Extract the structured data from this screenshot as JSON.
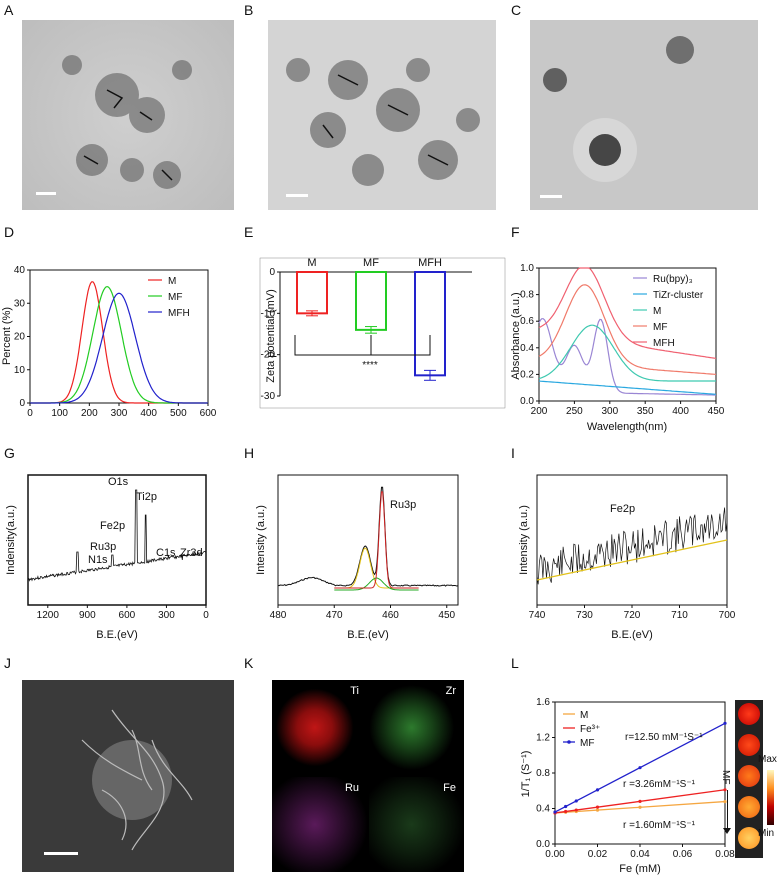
{
  "panels": {
    "A": {
      "letter": "A"
    },
    "B": {
      "letter": "B"
    },
    "C": {
      "letter": "C"
    },
    "D": {
      "letter": "D"
    },
    "E": {
      "letter": "E"
    },
    "F": {
      "letter": "F"
    },
    "G": {
      "letter": "G"
    },
    "H": {
      "letter": "H"
    },
    "I": {
      "letter": "I"
    },
    "J": {
      "letter": "J"
    },
    "K": {
      "letter": "K"
    },
    "L": {
      "letter": "L"
    }
  },
  "colors": {
    "red": "#ee2222",
    "green": "#22cc22",
    "blue": "#2222cc",
    "purple": "#9a86d4",
    "cyan": "#29a8e0",
    "salmon": "#f07a6a",
    "pink": "#f06070",
    "orange": "#f5a742"
  },
  "k_maps": {
    "ti": "Ti",
    "zr": "Zr",
    "ru": "Ru",
    "fe": "Fe"
  },
  "colorbar": {
    "max": "Max",
    "min": "Min",
    "arrow_label": "MF"
  },
  "chart_data": [
    {
      "id": "D",
      "type": "line",
      "xlabel": "",
      "ylabel": "Percent (%)",
      "xlim": [
        0,
        600
      ],
      "ylim": [
        0,
        40
      ],
      "xticks": [
        "0",
        "100",
        "200",
        "300",
        "400",
        "500",
        "600"
      ],
      "yticks": [
        "0",
        "10",
        "20",
        "30",
        "40"
      ],
      "series": [
        {
          "name": "M",
          "peak_x": 210,
          "peak_y": 36.5,
          "sigma": 35
        },
        {
          "name": "MF",
          "peak_x": 260,
          "peak_y": 35,
          "sigma": 48
        },
        {
          "name": "MFH",
          "peak_x": 300,
          "peak_y": 33,
          "sigma": 55
        }
      ]
    },
    {
      "id": "E",
      "type": "bar",
      "ylabel": "Zeta potential (mV)",
      "ylim": [
        -30,
        0
      ],
      "categories": [
        "M",
        "MF",
        "MFH"
      ],
      "values": [
        -10,
        -14,
        -25
      ],
      "errors": [
        0.6,
        0.8,
        1.2
      ],
      "yticks": [
        "0",
        "-10",
        "-20",
        "-30"
      ],
      "significance": "****"
    },
    {
      "id": "F",
      "type": "line",
      "xlabel": "Wavelength(nm)",
      "ylabel": "Absorbance (a.u.)",
      "xlim": [
        200,
        450
      ],
      "ylim": [
        0,
        1.0
      ],
      "xticks": [
        "200",
        "250",
        "300",
        "350",
        "400",
        "450"
      ],
      "yticks": [
        "0.0",
        "0.2",
        "0.4",
        "0.6",
        "0.8",
        "1.0"
      ],
      "series": [
        {
          "name": "Ru(bpy)₃"
        },
        {
          "name": "TiZr-cluster"
        },
        {
          "name": "M"
        },
        {
          "name": "MF"
        },
        {
          "name": "MFH"
        }
      ]
    },
    {
      "id": "G",
      "type": "line",
      "xlabel": "B.E.(eV)",
      "ylabel": "Indensity(a.u.)",
      "xlim": [
        1350,
        0
      ],
      "xticks": [
        "1200",
        "900",
        "600",
        "300",
        "0"
      ],
      "annotations": [
        "O1s",
        "Ti2p",
        "Fe2p",
        "Ru3p",
        "N1s",
        "C1s",
        "Zr3d"
      ]
    },
    {
      "id": "H",
      "type": "line",
      "xlabel": "B.E.(eV)",
      "ylabel": "Intensity (a.u.)",
      "xlim": [
        480,
        448
      ],
      "xticks": [
        "480",
        "470",
        "460",
        "450"
      ],
      "annotations": [
        "Ru3p"
      ]
    },
    {
      "id": "I",
      "type": "line",
      "xlabel": "B.E.(eV)",
      "ylabel": "Intensity (a.u.)",
      "xlim": [
        740,
        700
      ],
      "xticks": [
        "740",
        "730",
        "720",
        "710",
        "700"
      ],
      "annotations": [
        "Fe2p"
      ]
    },
    {
      "id": "L",
      "type": "scatter",
      "xlabel": "Fe (mM)",
      "ylabel": "1/T₁ (S⁻¹)",
      "xlim": [
        0,
        0.08
      ],
      "ylim": [
        0,
        1.6
      ],
      "xticks": [
        "0.00",
        "0.02",
        "0.04",
        "0.06",
        "0.08"
      ],
      "yticks": [
        "0.0",
        "0.4",
        "0.8",
        "1.2",
        "1.6"
      ],
      "series": [
        {
          "name": "M",
          "slope": 1.6,
          "intercept": 0.35,
          "label": "r =1.60mM⁻¹S⁻¹"
        },
        {
          "name": "Fe³⁺",
          "slope": 3.26,
          "intercept": 0.35,
          "label": "r =3.26mM⁻¹S⁻¹"
        },
        {
          "name": "MF",
          "slope": 12.5,
          "intercept": 0.36,
          "label": "r=12.50 mM⁻¹S⁻¹"
        }
      ],
      "x_points": [
        0,
        0.005,
        0.01,
        0.02,
        0.04,
        0.08
      ]
    }
  ]
}
